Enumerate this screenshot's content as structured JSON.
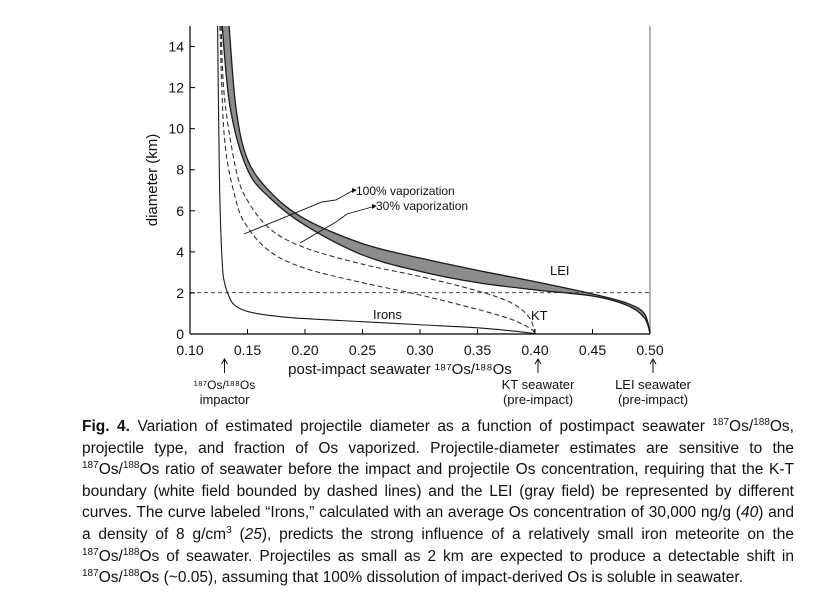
{
  "chart_data": {
    "type": "line",
    "xlabel": "post-impact seawater ¹⁸⁷Os/¹⁸⁸Os",
    "ylabel": "diameter (km)",
    "xlim": [
      0.1,
      0.5
    ],
    "ylim": [
      0,
      15
    ],
    "xticks": [
      "0.10",
      "0.15",
      "0.20",
      "0.25",
      "0.30",
      "0.35",
      "0.40",
      "0.45",
      "0.50"
    ],
    "xtick_values": [
      0.1,
      0.15,
      0.2,
      0.25,
      0.3,
      0.35,
      0.4,
      0.45,
      0.5
    ],
    "yticks": [
      "0",
      "2",
      "4",
      "6",
      "8",
      "10",
      "12",
      "14"
    ],
    "ytick_values": [
      0,
      2,
      4,
      6,
      8,
      10,
      12,
      14
    ],
    "grid": false,
    "reference_line_y": 2,
    "series": [
      {
        "name": "LEI",
        "style": "gray-band-upper",
        "x": [
          0.134,
          0.14,
          0.15,
          0.17,
          0.2,
          0.25,
          0.3,
          0.35,
          0.4,
          0.45,
          0.48,
          0.495,
          0.5
        ],
        "y": [
          15,
          11.0,
          8.5,
          6.9,
          5.6,
          4.4,
          3.7,
          3.1,
          2.55,
          1.95,
          1.5,
          1.0,
          0.05
        ]
      },
      {
        "name": "LEI",
        "style": "gray-band-lower",
        "x": [
          0.128,
          0.135,
          0.15,
          0.17,
          0.2,
          0.25,
          0.3,
          0.35,
          0.4,
          0.45,
          0.48,
          0.495,
          0.5
        ],
        "y": [
          15,
          11.0,
          8.0,
          6.6,
          5.3,
          3.85,
          3.05,
          2.5,
          2.15,
          1.85,
          1.4,
          0.8,
          0.05
        ]
      },
      {
        "name": "KT",
        "style": "dashed-upper",
        "x": [
          0.127,
          0.13,
          0.14,
          0.15,
          0.17,
          0.2,
          0.25,
          0.3,
          0.35,
          0.38,
          0.395,
          0.4
        ],
        "y": [
          15,
          11.5,
          8.0,
          6.5,
          5.1,
          4.2,
          3.4,
          2.8,
          2.1,
          1.5,
          0.8,
          0.05
        ]
      },
      {
        "name": "KT",
        "style": "dashed-lower",
        "x": [
          0.126,
          0.13,
          0.14,
          0.15,
          0.17,
          0.2,
          0.25,
          0.3,
          0.35,
          0.38,
          0.395,
          0.4
        ],
        "y": [
          15,
          9.5,
          6.5,
          5.2,
          4.0,
          3.2,
          2.5,
          1.9,
          1.2,
          0.7,
          0.3,
          0.05
        ]
      },
      {
        "name": "Irons",
        "style": "solid-thin",
        "x": [
          0.124,
          0.125,
          0.126,
          0.128,
          0.13,
          0.135,
          0.14,
          0.15,
          0.17,
          0.2,
          0.25,
          0.3,
          0.35,
          0.38,
          0.4
        ],
        "y": [
          15,
          10.0,
          6.5,
          3.5,
          2.5,
          1.7,
          1.35,
          1.1,
          0.9,
          0.75,
          0.6,
          0.45,
          0.3,
          0.15,
          0.02
        ]
      }
    ],
    "labels": {
      "lei": "LEI",
      "kt": "KT",
      "irons": "Irons",
      "vap100": "100% vaporization",
      "vap30": "30% vaporization"
    },
    "axis_markers": [
      {
        "x": 0.13,
        "label_line1": "¹⁸⁷Os/¹⁸⁸Os",
        "label_line2": "impactor"
      },
      {
        "x": 0.4,
        "label_line1": "KT seawater",
        "label_line2": "(pre-impact)"
      },
      {
        "x": 0.5,
        "label_line1": "LEI seawater",
        "label_line2": "(pre-impact)"
      }
    ],
    "colors": {
      "band_fill": "#8c8c8c",
      "line": "#1a1a1a",
      "dashed": "#333333"
    }
  },
  "caption": {
    "fig_label": "Fig. 4.",
    "text_1": " Variation of estimated projectile diameter as a function of postimpact seawater ",
    "text_2": "Os/",
    "text_3": "Os, projectile type, and fraction of Os vaporized. Projectile-diameter estimates are sensitive to the ",
    "text_4": "Os/",
    "text_5": "Os ratio of seawater before the impact and projectile Os concentration, requiring that the K-T boundary (white field bounded by dashed lines) and the LEI (gray field) be represented by different curves. The curve labeled “Irons,” calculated with an average Os concentration of 30,000 ng/g (",
    "ref_40": "40",
    "text_6": ") and a density of 8 g/cm",
    "sup_3": "3",
    "text_7": " (",
    "ref_25": "25",
    "text_8": "), predicts the strong influence of a relatively small iron meteorite on the ",
    "text_9": "Os/",
    "text_10": "Os of seawater. Projectiles as small as 2 km are expected to produce a detectable shift in ",
    "text_11": "Os/",
    "text_12": "Os (~0.05), assuming that 100% dissolution of impact-derived Os is soluble in seawater.",
    "sup_187": "187",
    "sup_188": "188"
  }
}
